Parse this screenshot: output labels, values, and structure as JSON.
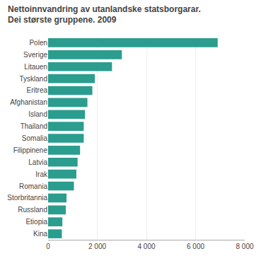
{
  "chart_data": {
    "type": "bar",
    "orientation": "horizontal",
    "title": "Nettoinnvandring av utanlandske statsborgarar.",
    "subtitle": "Dei største gruppene. 2009",
    "categories": [
      "Polen",
      "Sverige",
      "Litauen",
      "Tyskland",
      "Eritrea",
      "Afghanistan",
      "Island",
      "Thailand",
      "Somalia",
      "Filippinene",
      "Latvia",
      "Irak",
      "Romania",
      "Storbritannia",
      "Russland",
      "Etiopia",
      "Kina"
    ],
    "values": [
      6900,
      3000,
      2600,
      1900,
      1800,
      1600,
      1500,
      1450,
      1450,
      1300,
      1200,
      1150,
      1050,
      750,
      720,
      580,
      560
    ],
    "color": "#2a9d8f",
    "xlim": [
      0,
      8000
    ],
    "xticks": [
      0,
      {
        "value": 2000,
        "label": "2 000"
      },
      {
        "value": 4000,
        "label": "4 000"
      },
      {
        "value": 6000,
        "label": "6 000"
      },
      {
        "value": 8000,
        "label": "8 000"
      }
    ],
    "grid": true
  }
}
